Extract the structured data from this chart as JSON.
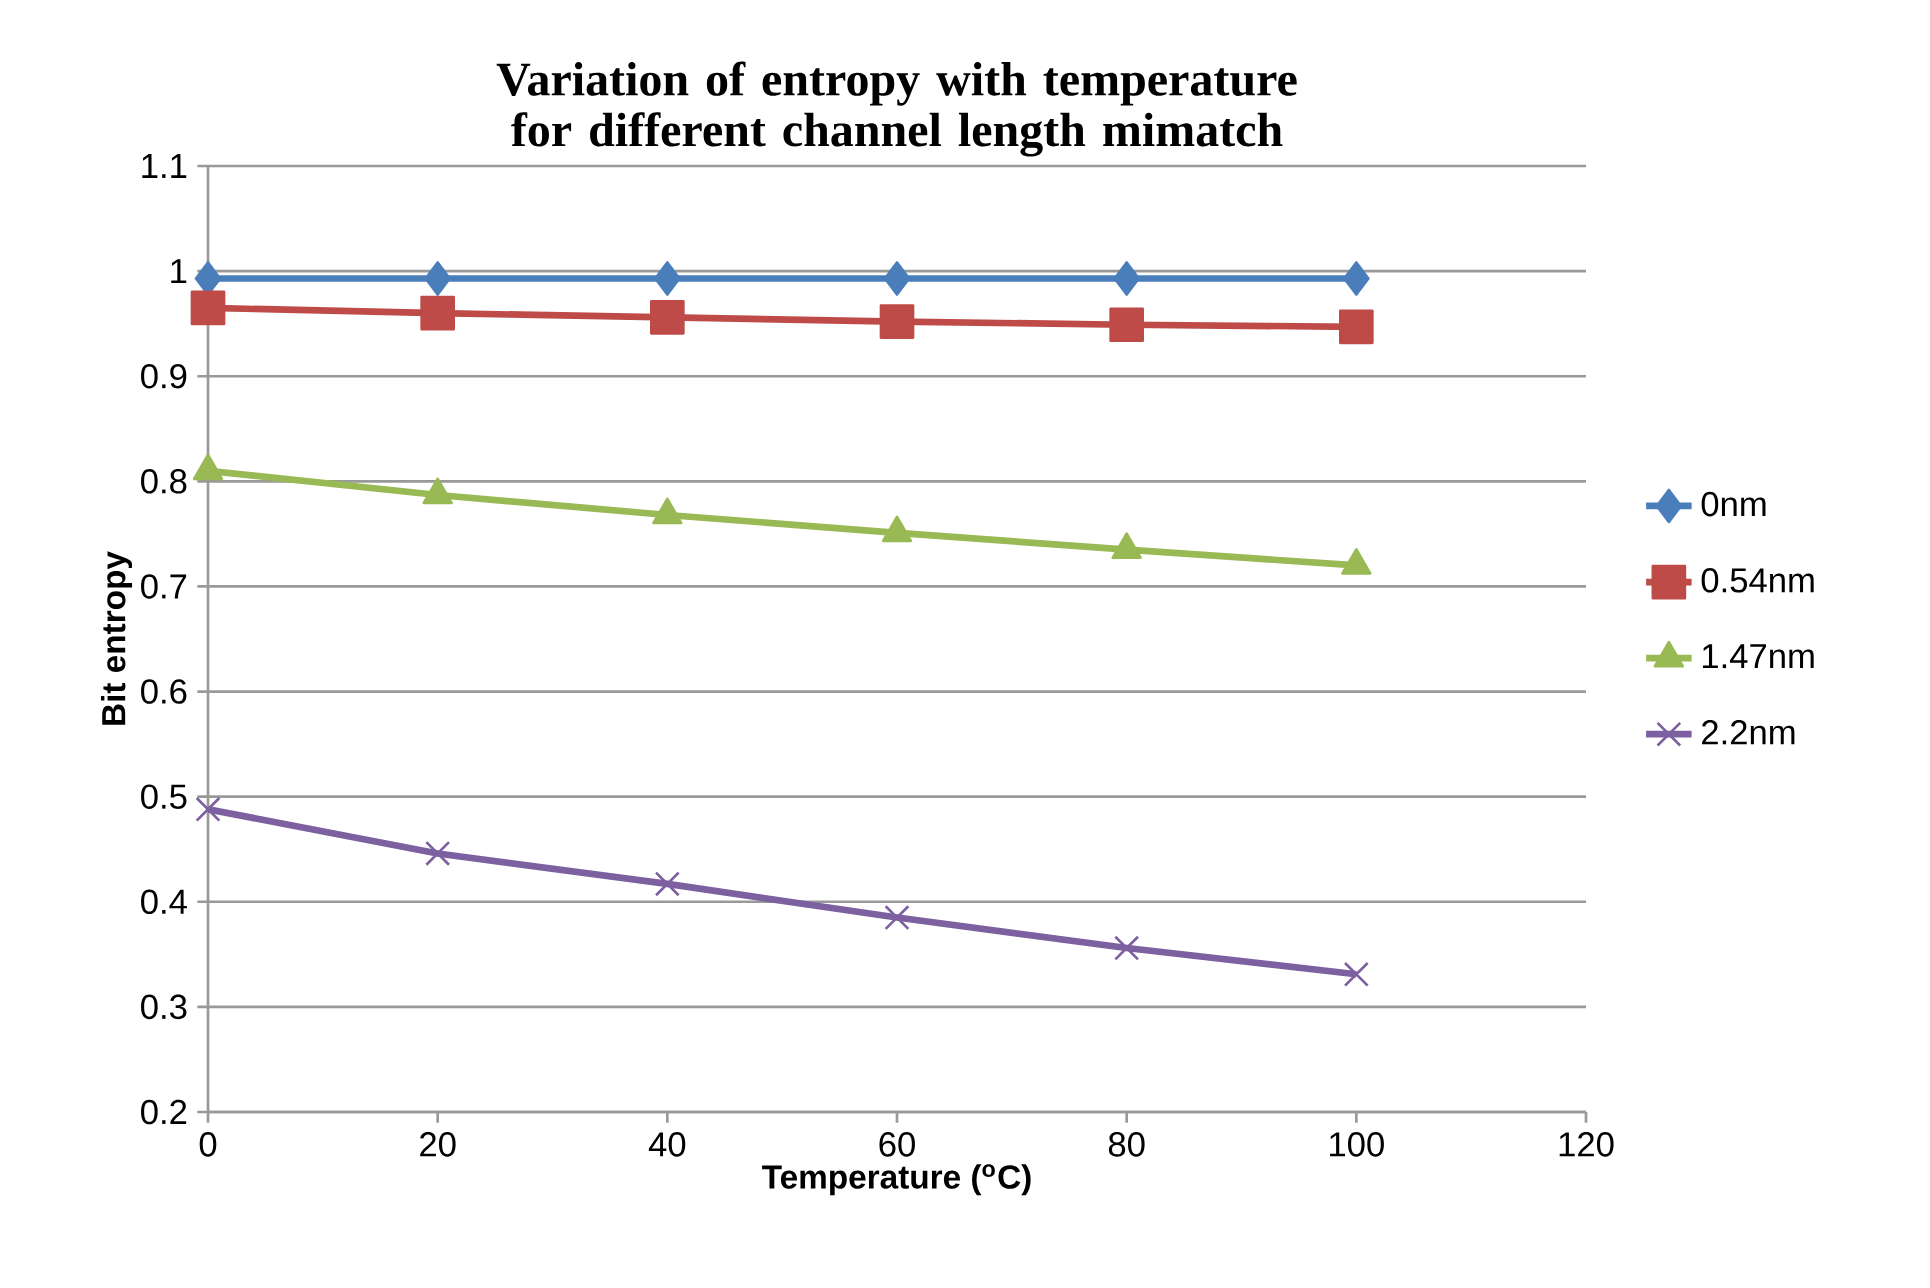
{
  "chart_data": {
    "type": "line",
    "title": "Variation of entropy with temperature for different channel length mimatch",
    "xlabel": "Temperature ($^{o}$C)",
    "ylabel": "Bit entropy",
    "x": [
      0,
      20,
      40,
      60,
      80,
      100
    ],
    "series": [
      {
        "name": "0nm",
        "color": "#4a7ebb",
        "marker": "diamond",
        "values": [
          0.993,
          0.993,
          0.993,
          0.993,
          0.993,
          0.993
        ]
      },
      {
        "name": "0.54nm",
        "color": "#be4b48",
        "marker": "square",
        "values": [
          0.965,
          0.96,
          0.956,
          0.952,
          0.949,
          0.947
        ]
      },
      {
        "name": "1.47nm",
        "color": "#98b954",
        "marker": "triangle",
        "values": [
          0.81,
          0.787,
          0.768,
          0.751,
          0.735,
          0.72
        ]
      },
      {
        "name": "2.2nm",
        "color": "#7d60a0",
        "marker": "cross",
        "values": [
          0.488,
          0.446,
          0.417,
          0.385,
          0.356,
          0.331
        ]
      }
    ],
    "xlim": [
      0,
      120
    ],
    "xticks": [
      0,
      20,
      40,
      60,
      80,
      100,
      120
    ],
    "ylim": [
      0.2,
      1.1
    ],
    "yticks": [
      0.2,
      0.3,
      0.4,
      0.5,
      0.6,
      0.7,
      0.8,
      0.9,
      1,
      1.1
    ],
    "grid": "y",
    "legend": "right",
    "line_style": "solid"
  }
}
